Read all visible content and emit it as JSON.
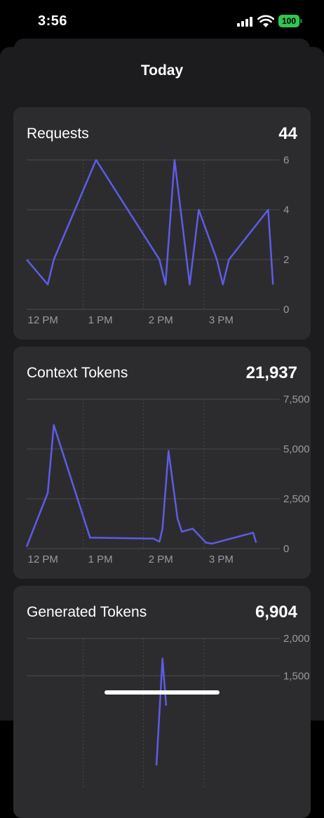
{
  "status_bar": {
    "time": "3:56",
    "battery": "100"
  },
  "sheet": {
    "title": "Today"
  },
  "colors": {
    "line": "#5e5ce6",
    "card": "#2c2c2e",
    "sheet": "#1c1c1e",
    "battery": "#31c552"
  },
  "cards": [
    {
      "title": "Requests",
      "total": "44",
      "chart_data": {
        "type": "line",
        "y_ticks": [
          "0",
          "2",
          "4",
          "6"
        ],
        "ylim": [
          0,
          6
        ],
        "x_ticks": [
          "12 PM",
          "1 PM",
          "2 PM",
          "3 PM"
        ],
        "xlim": [
          11.75,
          15.85
        ],
        "x_tick_values": [
          12.0,
          13.0,
          14.0,
          15.0
        ],
        "x": [
          11.75,
          12.1,
          12.2,
          12.9,
          13.95,
          14.05,
          14.2,
          14.45,
          14.6,
          14.9,
          15.0,
          15.1,
          15.75,
          15.83
        ],
        "y": [
          2,
          1,
          2,
          6,
          2,
          1,
          6,
          1,
          4,
          2,
          1,
          2,
          4,
          1
        ]
      }
    },
    {
      "title": "Context Tokens",
      "total": "21,937",
      "chart_data": {
        "type": "line",
        "y_ticks": [
          "0",
          "2,500",
          "5,000",
          "7,500"
        ],
        "ylim": [
          0,
          7500
        ],
        "x_ticks": [
          "12 PM",
          "1 PM",
          "2 PM",
          "3 PM"
        ],
        "xlim": [
          11.75,
          15.85
        ],
        "x_tick_values": [
          12.0,
          13.0,
          14.0,
          15.0
        ],
        "x": [
          11.75,
          12.1,
          12.2,
          12.8,
          13.85,
          13.95,
          14.0,
          14.1,
          14.25,
          14.32,
          14.5,
          14.72,
          14.82,
          15.5,
          15.55
        ],
        "y": [
          100,
          2800,
          6200,
          550,
          500,
          350,
          1000,
          4900,
          1500,
          850,
          1000,
          300,
          250,
          800,
          300
        ]
      }
    },
    {
      "title": "Generated Tokens",
      "total": "6,904",
      "chart_data": {
        "type": "line",
        "y_ticks": [
          "1,500",
          "2,000"
        ],
        "ylim": [
          0,
          2000
        ],
        "x_ticks": [],
        "xlim": [
          11.75,
          15.85
        ],
        "x_tick_values": [
          12.0,
          13.0,
          14.0,
          15.0
        ],
        "x": [
          13.9,
          14.0,
          14.06
        ],
        "y": [
          300,
          1730,
          1100
        ]
      }
    }
  ]
}
